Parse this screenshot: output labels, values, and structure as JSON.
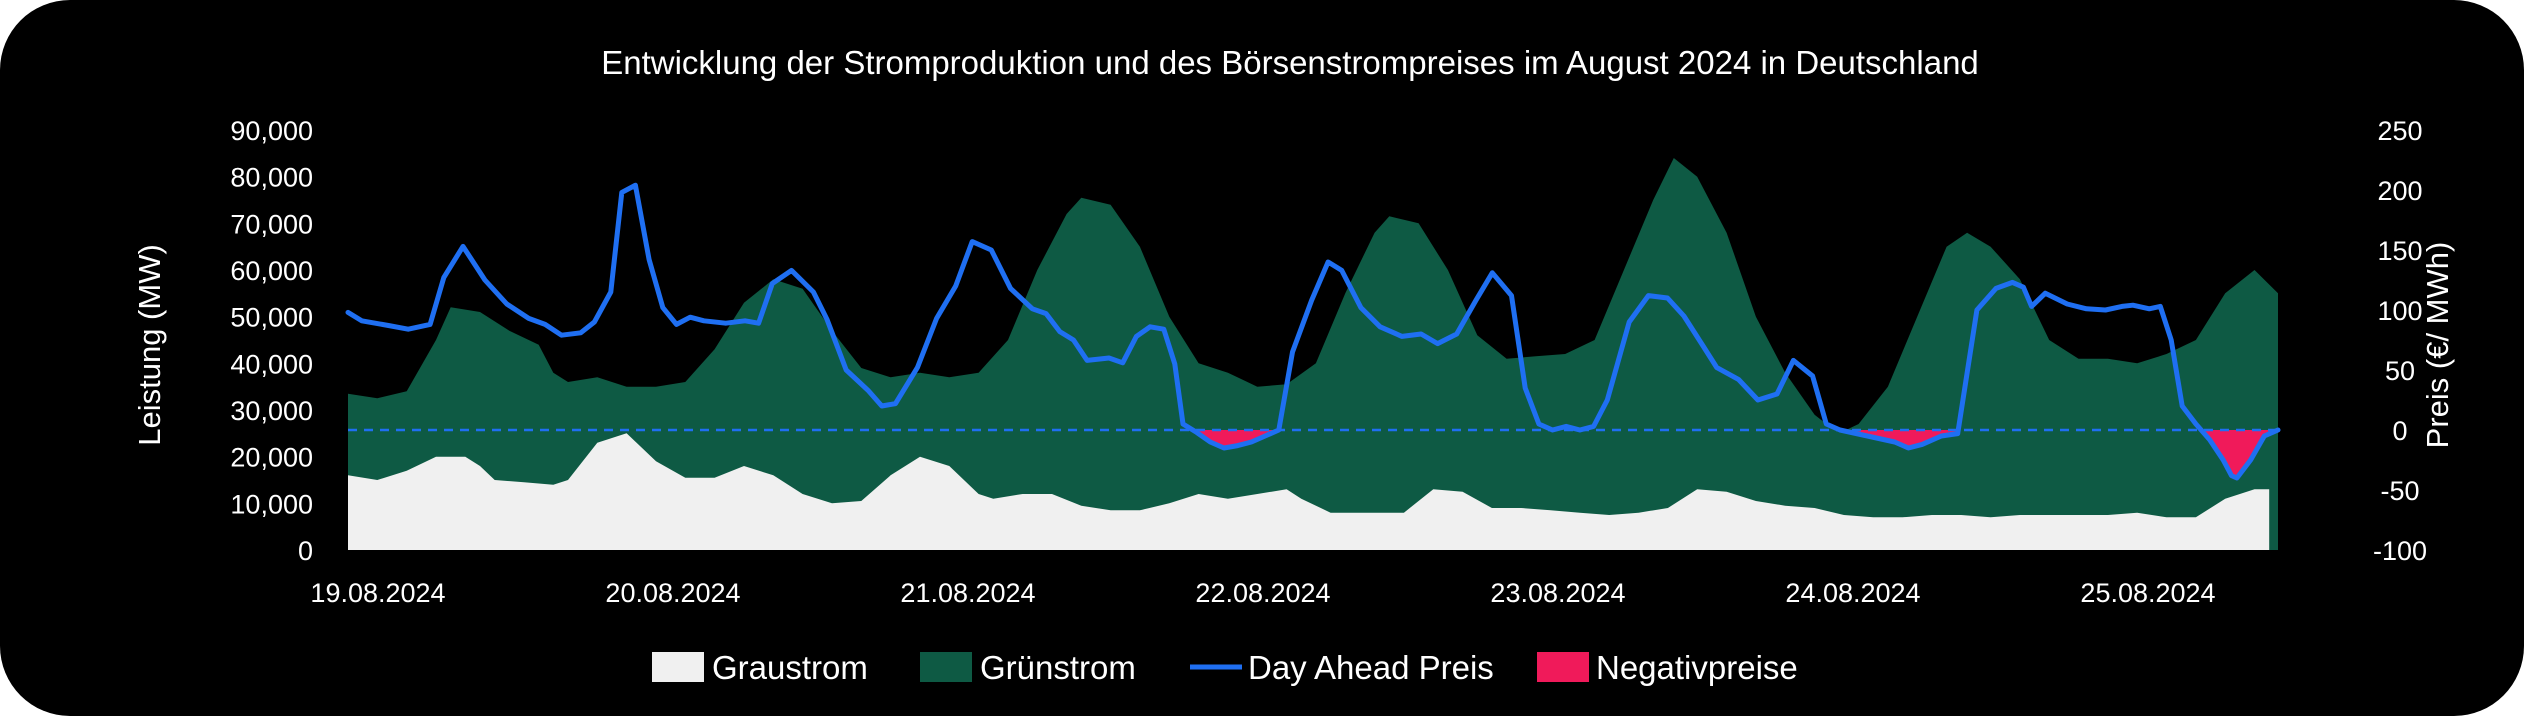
{
  "chart_data": {
    "type": "area",
    "title": "Entwicklung der Stromproduktion und des Börsenstrompreises im August 2024 in Deutschland",
    "y_left": {
      "label": "Leistung (MW)",
      "min": 0,
      "max": 90000,
      "step": 10000,
      "tick_labels": [
        "0",
        "10,000",
        "20,000",
        "30,000",
        "40,000",
        "50,000",
        "60,000",
        "70,000",
        "80,000",
        "90,000"
      ]
    },
    "y_right": {
      "label": "Preis (€/ MWh)",
      "min": -100,
      "max": 250,
      "step": 50,
      "tick_labels": [
        "-100",
        "-50",
        "0",
        "50",
        "100",
        "150",
        "200",
        "250"
      ]
    },
    "x_axis": {
      "min": 0,
      "max": 6.55,
      "ticks": [
        {
          "x": 0,
          "label": "19.08.2024"
        },
        {
          "x": 1,
          "label": "20.08.2024"
        },
        {
          "x": 2,
          "label": "21.08.2024"
        },
        {
          "x": 3,
          "label": "22.08.2024"
        },
        {
          "x": 4,
          "label": "23.08.2024"
        },
        {
          "x": 5,
          "label": "24.08.2024"
        },
        {
          "x": 6,
          "label": "25.08.2024"
        }
      ]
    },
    "zero_line_price": 0,
    "legend": {
      "position": "bottom",
      "items": [
        {
          "key": "graustrom",
          "label": "Graustrom",
          "color": "#f0f0f0"
        },
        {
          "key": "gruenstrom",
          "label": "Grünstrom",
          "color": "#0e5a44"
        },
        {
          "key": "price",
          "label": "Day Ahead Preis",
          "color": "#1f6ff2"
        },
        {
          "key": "negativ",
          "label": "Negativpreise",
          "color": "#f01a5a"
        }
      ]
    },
    "series": [
      {
        "key": "graustrom",
        "name": "Graustrom",
        "unit": "MW",
        "points": [
          [
            0,
            16000
          ],
          [
            0.1,
            15000
          ],
          [
            0.2,
            17000
          ],
          [
            0.3,
            20000
          ],
          [
            0.4,
            20000
          ],
          [
            0.45,
            18000
          ],
          [
            0.5,
            15000
          ],
          [
            0.6,
            14500
          ],
          [
            0.7,
            14000
          ],
          [
            0.75,
            15000
          ],
          [
            0.85,
            23000
          ],
          [
            0.95,
            25000
          ],
          [
            1.05,
            19000
          ],
          [
            1.15,
            15500
          ],
          [
            1.25,
            15500
          ],
          [
            1.35,
            18000
          ],
          [
            1.45,
            16000
          ],
          [
            1.55,
            12000
          ],
          [
            1.65,
            10000
          ],
          [
            1.75,
            10500
          ],
          [
            1.85,
            16000
          ],
          [
            1.95,
            20000
          ],
          [
            2.05,
            18000
          ],
          [
            2.15,
            12000
          ],
          [
            2.2,
            11000
          ],
          [
            2.3,
            12000
          ],
          [
            2.4,
            12000
          ],
          [
            2.5,
            9500
          ],
          [
            2.6,
            8500
          ],
          [
            2.7,
            8500
          ],
          [
            2.8,
            10000
          ],
          [
            2.9,
            12000
          ],
          [
            3.0,
            11000
          ],
          [
            3.1,
            12000
          ],
          [
            3.2,
            13000
          ],
          [
            3.25,
            11000
          ],
          [
            3.35,
            8000
          ],
          [
            3.5,
            8000
          ],
          [
            3.6,
            8000
          ],
          [
            3.7,
            13000
          ],
          [
            3.8,
            12500
          ],
          [
            3.9,
            9000
          ],
          [
            4.0,
            9000
          ],
          [
            4.1,
            8500
          ],
          [
            4.2,
            8000
          ],
          [
            4.3,
            7500
          ],
          [
            4.4,
            8000
          ],
          [
            4.5,
            9000
          ],
          [
            4.6,
            13000
          ],
          [
            4.7,
            12500
          ],
          [
            4.8,
            10500
          ],
          [
            4.9,
            9500
          ],
          [
            5.0,
            9000
          ],
          [
            5.1,
            7500
          ],
          [
            5.2,
            7000
          ],
          [
            5.3,
            7000
          ],
          [
            5.4,
            7500
          ],
          [
            5.5,
            7500
          ],
          [
            5.6,
            7000
          ],
          [
            5.7,
            7500
          ],
          [
            5.8,
            7500
          ],
          [
            5.9,
            7500
          ],
          [
            6.0,
            7500
          ],
          [
            6.1,
            8000
          ],
          [
            6.2,
            7000
          ],
          [
            6.3,
            7000
          ],
          [
            6.4,
            11000
          ],
          [
            6.5,
            13000
          ],
          [
            6.55,
            13000
          ]
        ]
      },
      {
        "key": "gruenstrom",
        "name": "Grünstrom",
        "unit": "MW",
        "points": [
          [
            0,
            33500
          ],
          [
            0.1,
            32500
          ],
          [
            0.2,
            34000
          ],
          [
            0.3,
            45000
          ],
          [
            0.35,
            52000
          ],
          [
            0.45,
            51000
          ],
          [
            0.55,
            47000
          ],
          [
            0.65,
            44000
          ],
          [
            0.7,
            38000
          ],
          [
            0.75,
            36000
          ],
          [
            0.85,
            37000
          ],
          [
            0.95,
            35000
          ],
          [
            1.05,
            35000
          ],
          [
            1.15,
            36000
          ],
          [
            1.25,
            43000
          ],
          [
            1.35,
            53000
          ],
          [
            1.45,
            58000
          ],
          [
            1.55,
            56000
          ],
          [
            1.65,
            47000
          ],
          [
            1.75,
            39000
          ],
          [
            1.85,
            37000
          ],
          [
            1.95,
            38000
          ],
          [
            2.05,
            37000
          ],
          [
            2.15,
            38000
          ],
          [
            2.25,
            45000
          ],
          [
            2.35,
            60000
          ],
          [
            2.45,
            72000
          ],
          [
            2.5,
            75500
          ],
          [
            2.6,
            74000
          ],
          [
            2.7,
            65000
          ],
          [
            2.8,
            50000
          ],
          [
            2.9,
            40000
          ],
          [
            3.0,
            38000
          ],
          [
            3.1,
            35000
          ],
          [
            3.2,
            35500
          ],
          [
            3.3,
            40000
          ],
          [
            3.4,
            55000
          ],
          [
            3.5,
            68000
          ],
          [
            3.55,
            71500
          ],
          [
            3.65,
            70000
          ],
          [
            3.75,
            60000
          ],
          [
            3.85,
            46000
          ],
          [
            3.95,
            41000
          ],
          [
            4.05,
            41500
          ],
          [
            4.15,
            42000
          ],
          [
            4.25,
            45000
          ],
          [
            4.35,
            60000
          ],
          [
            4.45,
            75000
          ],
          [
            4.52,
            84000
          ],
          [
            4.6,
            80000
          ],
          [
            4.7,
            68000
          ],
          [
            4.8,
            50000
          ],
          [
            4.9,
            38000
          ],
          [
            5.0,
            29000
          ],
          [
            5.05,
            26500
          ],
          [
            5.1,
            25500
          ],
          [
            5.15,
            27000
          ],
          [
            5.25,
            35000
          ],
          [
            5.35,
            50000
          ],
          [
            5.45,
            65000
          ],
          [
            5.52,
            68000
          ],
          [
            5.6,
            65000
          ],
          [
            5.7,
            58000
          ],
          [
            5.8,
            45000
          ],
          [
            5.9,
            41000
          ],
          [
            6.0,
            41000
          ],
          [
            6.1,
            40000
          ],
          [
            6.2,
            42000
          ],
          [
            6.3,
            45000
          ],
          [
            6.4,
            55000
          ],
          [
            6.5,
            60000
          ],
          [
            6.58,
            55000
          ]
        ]
      },
      {
        "key": "price",
        "name": "Day Ahead Preis",
        "unit": "€/MWh",
        "points": [
          [
            0,
            98
          ],
          [
            0.05,
            91
          ],
          [
            0.15,
            87
          ],
          [
            0.22,
            84
          ],
          [
            0.3,
            88
          ],
          [
            0.35,
            127
          ],
          [
            0.42,
            153
          ],
          [
            0.5,
            125
          ],
          [
            0.58,
            105
          ],
          [
            0.66,
            93
          ],
          [
            0.72,
            88
          ],
          [
            0.78,
            79
          ],
          [
            0.85,
            81
          ],
          [
            0.9,
            90
          ],
          [
            0.96,
            115
          ],
          [
            1.0,
            198
          ],
          [
            1.05,
            204
          ],
          [
            1.1,
            142
          ],
          [
            1.15,
            102
          ],
          [
            1.2,
            88
          ],
          [
            1.25,
            94
          ],
          [
            1.3,
            91
          ],
          [
            1.38,
            89
          ],
          [
            1.45,
            91
          ],
          [
            1.5,
            89
          ],
          [
            1.55,
            122
          ],
          [
            1.62,
            133
          ],
          [
            1.7,
            115
          ],
          [
            1.75,
            92
          ],
          [
            1.82,
            50
          ],
          [
            1.9,
            33
          ],
          [
            1.95,
            20
          ],
          [
            2.0,
            22
          ],
          [
            2.08,
            52
          ],
          [
            2.15,
            93
          ],
          [
            2.22,
            120
          ],
          [
            2.28,
            157
          ],
          [
            2.35,
            150
          ],
          [
            2.42,
            118
          ],
          [
            2.5,
            101
          ],
          [
            2.55,
            97
          ],
          [
            2.6,
            82
          ],
          [
            2.65,
            75
          ],
          [
            2.7,
            58
          ],
          [
            2.78,
            60
          ],
          [
            2.83,
            56
          ],
          [
            2.88,
            78
          ],
          [
            2.93,
            86
          ],
          [
            2.98,
            84
          ],
          [
            3.02,
            55
          ],
          [
            3.05,
            5
          ],
          [
            3.1,
            -2
          ],
          [
            3.15,
            -10
          ],
          [
            3.2,
            -15
          ],
          [
            3.25,
            -13
          ],
          [
            3.3,
            -10
          ],
          [
            3.35,
            -5
          ],
          [
            3.4,
            0
          ],
          [
            3.45,
            65
          ],
          [
            3.52,
            108
          ],
          [
            3.58,
            140
          ],
          [
            3.63,
            133
          ],
          [
            3.7,
            102
          ],
          [
            3.77,
            86
          ],
          [
            3.85,
            78
          ],
          [
            3.92,
            80
          ],
          [
            3.98,
            72
          ],
          [
            4.05,
            80
          ],
          [
            4.12,
            108
          ],
          [
            4.18,
            131
          ],
          [
            4.25,
            112
          ],
          [
            4.3,
            35
          ],
          [
            4.35,
            5
          ],
          [
            4.4,
            0
          ],
          [
            4.45,
            3
          ],
          [
            4.5,
            0
          ],
          [
            4.55,
            3
          ],
          [
            4.6,
            25
          ],
          [
            4.68,
            90
          ],
          [
            4.75,
            112
          ],
          [
            4.82,
            110
          ],
          [
            4.88,
            95
          ],
          [
            4.95,
            70
          ],
          [
            5.0,
            52
          ],
          [
            5.08,
            42
          ],
          [
            5.15,
            25
          ],
          [
            5.22,
            30
          ],
          [
            5.28,
            58
          ],
          [
            5.35,
            45
          ],
          [
            5.4,
            5
          ],
          [
            5.45,
            0
          ],
          [
            5.55,
            -5
          ],
          [
            5.65,
            -10
          ],
          [
            5.7,
            -15
          ],
          [
            5.75,
            -12
          ],
          [
            5.82,
            -5
          ],
          [
            5.88,
            -3
          ],
          [
            5.95,
            100
          ],
          [
            6.02,
            118
          ],
          [
            6.08,
            123
          ],
          [
            6.12,
            119
          ],
          [
            6.15,
            103
          ],
          [
            6.2,
            114
          ],
          [
            6.28,
            105
          ],
          [
            6.35,
            101
          ],
          [
            6.42,
            100
          ],
          [
            6.48,
            103
          ],
          [
            6.52,
            104
          ],
          [
            6.58,
            101
          ],
          [
            6.62,
            103
          ],
          [
            6.66,
            75
          ],
          [
            6.7,
            20
          ],
          [
            6.75,
            5
          ],
          [
            6.8,
            -8
          ],
          [
            6.85,
            -25
          ],
          [
            6.88,
            -38
          ],
          [
            6.9,
            -40
          ],
          [
            6.95,
            -25
          ],
          [
            7.0,
            -5
          ],
          [
            7.05,
            0
          ]
        ]
      },
      {
        "key": "negativ",
        "name": "Negativpreise",
        "unit": "€/MWh",
        "points": []
      }
    ]
  }
}
